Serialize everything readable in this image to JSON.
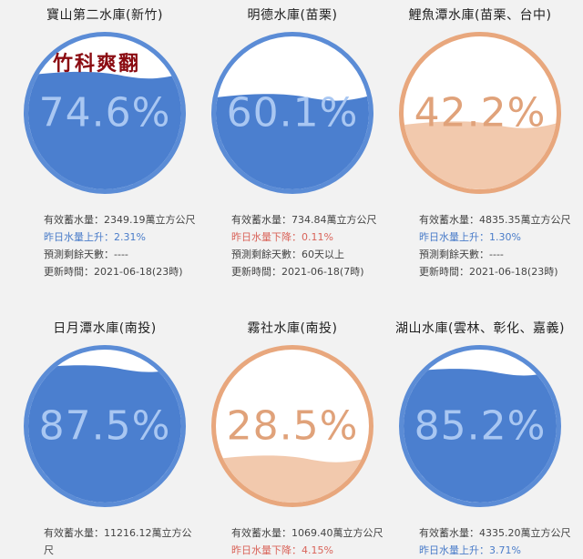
{
  "logo_text": "竹科爽翻",
  "colors": {
    "blue_fill": "#4b7fcf",
    "blue_ring": "#5b8cd6",
    "blue_text": "#a9c7f2",
    "orange_fill": "#f2c9ad",
    "orange_ring": "#e8a77d",
    "orange_text": "#e0a27a",
    "rise": "#4a7cc9",
    "fall": "#d9645a"
  },
  "reservoirs": [
    {
      "name": "寶山第二水庫(新竹)",
      "percent_text": "74.6%",
      "level": 0.746,
      "theme": "blue",
      "capacity": "有效蓄水量：2349.19萬立方公尺",
      "change": "昨日水量上升：2.31%",
      "change_dir": "rise",
      "forecast": "預測剩餘天數：----",
      "updated": "更新時間：2021-06-18(23時)"
    },
    {
      "name": "明德水庫(苗栗)",
      "percent_text": "60.1%",
      "level": 0.601,
      "theme": "blue",
      "capacity": "有效蓄水量：734.84萬立方公尺",
      "change": "昨日水量下降：0.11%",
      "change_dir": "fall",
      "forecast": "預測剩餘天數：60天以上",
      "updated": "更新時間：2021-06-18(7時)"
    },
    {
      "name": "鯉魚潭水庫(苗栗、台中)",
      "percent_text": "42.2%",
      "level": 0.422,
      "theme": "orange",
      "capacity": "有效蓄水量：4835.35萬立方公尺",
      "change": "昨日水量上升：1.30%",
      "change_dir": "rise",
      "forecast": "預測剩餘天數：----",
      "updated": "更新時間：2021-06-18(23時)"
    },
    {
      "name": "日月潭水庫(南投)",
      "percent_text": "87.5%",
      "level": 0.875,
      "theme": "blue",
      "capacity": "有效蓄水量：11216.12萬立方公尺",
      "change": "",
      "change_dir": "rise",
      "forecast": "",
      "updated": ""
    },
    {
      "name": "霧社水庫(南投)",
      "percent_text": "28.5%",
      "level": 0.285,
      "theme": "orange",
      "capacity": "有效蓄水量：1069.40萬立方公尺",
      "change": "昨日水量下降：4.15%",
      "change_dir": "fall",
      "forecast": "",
      "updated": ""
    },
    {
      "name": "湖山水庫(雲林、彰化、嘉義)",
      "percent_text": "85.2%",
      "level": 0.852,
      "theme": "blue",
      "capacity": "有效蓄水量：4335.20萬立方公尺",
      "change": "昨日水量上升：3.71%",
      "change_dir": "rise",
      "forecast": "",
      "updated": ""
    }
  ]
}
